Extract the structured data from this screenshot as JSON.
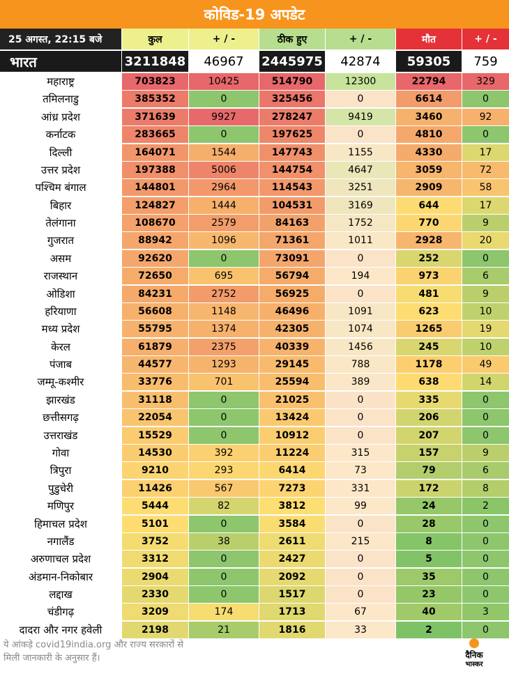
{
  "title": "कोविड-19 अपडेट",
  "header": {
    "date": "25 अगस्त, 22:15 बजे",
    "total": "कुल",
    "total_change": "+ / -",
    "recovered": "ठीक हुए",
    "recovered_change": "+ / -",
    "deaths": "मौत",
    "deaths_change": "+ / -"
  },
  "india": {
    "name": "भारत",
    "total": "3211848",
    "total_change": "46967",
    "recovered": "2445975",
    "recovered_change": "42874",
    "deaths": "59305",
    "deaths_change": "759"
  },
  "colors": {
    "title_bg": "#f7941d",
    "green": "#8dc66d",
    "red": "#e8686a",
    "yellow": "#fbd86c",
    "orange": "#f7ac6e"
  },
  "states": [
    {
      "name": "महाराष्ट्र",
      "total": "703823",
      "total_change": "10425",
      "recovered": "514790",
      "recovered_change": "12300",
      "deaths": "22794",
      "deaths_change": "329"
    },
    {
      "name": "तमिलनाडु",
      "total": "385352",
      "total_change": "0",
      "recovered": "325456",
      "recovered_change": "0",
      "deaths": "6614",
      "deaths_change": "0"
    },
    {
      "name": "आंध्र प्रदेश",
      "total": "371639",
      "total_change": "9927",
      "recovered": "278247",
      "recovered_change": "9419",
      "deaths": "3460",
      "deaths_change": "92"
    },
    {
      "name": "कर्नाटक",
      "total": "283665",
      "total_change": "0",
      "recovered": "197625",
      "recovered_change": "0",
      "deaths": "4810",
      "deaths_change": "0"
    },
    {
      "name": "दिल्ली",
      "total": "164071",
      "total_change": "1544",
      "recovered": "147743",
      "recovered_change": "1155",
      "deaths": "4330",
      "deaths_change": "17"
    },
    {
      "name": "उत्तर प्रदेश",
      "total": "197388",
      "total_change": "5006",
      "recovered": "144754",
      "recovered_change": "4647",
      "deaths": "3059",
      "deaths_change": "72"
    },
    {
      "name": "पश्चिम बंगाल",
      "total": "144801",
      "total_change": "2964",
      "recovered": "114543",
      "recovered_change": "3251",
      "deaths": "2909",
      "deaths_change": "58"
    },
    {
      "name": "बिहार",
      "total": "124827",
      "total_change": "1444",
      "recovered": "104531",
      "recovered_change": "3169",
      "deaths": "644",
      "deaths_change": "17"
    },
    {
      "name": "तेलंगाना",
      "total": "108670",
      "total_change": "2579",
      "recovered": "84163",
      "recovered_change": "1752",
      "deaths": "770",
      "deaths_change": "9"
    },
    {
      "name": "गुजरात",
      "total": "88942",
      "total_change": "1096",
      "recovered": "71361",
      "recovered_change": "1011",
      "deaths": "2928",
      "deaths_change": "20"
    },
    {
      "name": "असम",
      "total": "92620",
      "total_change": "0",
      "recovered": "73091",
      "recovered_change": "0",
      "deaths": "252",
      "deaths_change": "0"
    },
    {
      "name": "राजस्थान",
      "total": "72650",
      "total_change": "695",
      "recovered": "56794",
      "recovered_change": "194",
      "deaths": "973",
      "deaths_change": "6"
    },
    {
      "name": "ओडिशा",
      "total": "84231",
      "total_change": "2752",
      "recovered": "56925",
      "recovered_change": "0",
      "deaths": "481",
      "deaths_change": "9"
    },
    {
      "name": "हरियाणा",
      "total": "56608",
      "total_change": "1148",
      "recovered": "46496",
      "recovered_change": "1091",
      "deaths": "623",
      "deaths_change": "10"
    },
    {
      "name": "मध्य प्रदेश",
      "total": "55795",
      "total_change": "1374",
      "recovered": "42305",
      "recovered_change": "1074",
      "deaths": "1265",
      "deaths_change": "19"
    },
    {
      "name": "केरल",
      "total": "61879",
      "total_change": "2375",
      "recovered": "40339",
      "recovered_change": "1456",
      "deaths": "245",
      "deaths_change": "10"
    },
    {
      "name": "पंजाब",
      "total": "44577",
      "total_change": "1293",
      "recovered": "29145",
      "recovered_change": "788",
      "deaths": "1178",
      "deaths_change": "49"
    },
    {
      "name": "जम्मू-कश्मीर",
      "total": "33776",
      "total_change": "701",
      "recovered": "25594",
      "recovered_change": "389",
      "deaths": "638",
      "deaths_change": "14"
    },
    {
      "name": "झारखंड",
      "total": "31118",
      "total_change": "0",
      "recovered": "21025",
      "recovered_change": "0",
      "deaths": "335",
      "deaths_change": "0"
    },
    {
      "name": "छत्तीसगढ़",
      "total": "22054",
      "total_change": "0",
      "recovered": "13424",
      "recovered_change": "0",
      "deaths": "206",
      "deaths_change": "0"
    },
    {
      "name": "उत्तराखंड",
      "total": "15529",
      "total_change": "0",
      "recovered": "10912",
      "recovered_change": "0",
      "deaths": "207",
      "deaths_change": "0"
    },
    {
      "name": "गोवा",
      "total": "14530",
      "total_change": "392",
      "recovered": "11224",
      "recovered_change": "315",
      "deaths": "157",
      "deaths_change": "9"
    },
    {
      "name": "त्रिपुरा",
      "total": "9210",
      "total_change": "293",
      "recovered": "6414",
      "recovered_change": "73",
      "deaths": "79",
      "deaths_change": "6"
    },
    {
      "name": "पुडुचेरी",
      "total": "11426",
      "total_change": "567",
      "recovered": "7273",
      "recovered_change": "331",
      "deaths": "172",
      "deaths_change": "8"
    },
    {
      "name": "मणिपुर",
      "total": "5444",
      "total_change": "82",
      "recovered": "3812",
      "recovered_change": "99",
      "deaths": "24",
      "deaths_change": "2"
    },
    {
      "name": "हिमाचल प्रदेश",
      "total": "5101",
      "total_change": "0",
      "recovered": "3584",
      "recovered_change": "0",
      "deaths": "28",
      "deaths_change": "0"
    },
    {
      "name": "नगालैंड",
      "total": "3752",
      "total_change": "38",
      "recovered": "2611",
      "recovered_change": "215",
      "deaths": "8",
      "deaths_change": "0"
    },
    {
      "name": "अरुणाचल प्रदेश",
      "total": "3312",
      "total_change": "0",
      "recovered": "2427",
      "recovered_change": "0",
      "deaths": "5",
      "deaths_change": "0"
    },
    {
      "name": "अंडमान-निकोबार",
      "total": "2904",
      "total_change": "0",
      "recovered": "2092",
      "recovered_change": "0",
      "deaths": "35",
      "deaths_change": "0"
    },
    {
      "name": "लद्दाख",
      "total": "2330",
      "total_change": "0",
      "recovered": "1517",
      "recovered_change": "0",
      "deaths": "23",
      "deaths_change": "0"
    },
    {
      "name": "चंडीगढ़",
      "total": "3209",
      "total_change": "174",
      "recovered": "1713",
      "recovered_change": "67",
      "deaths": "40",
      "deaths_change": "3"
    },
    {
      "name": "दादरा और नगर हवेली",
      "total": "2198",
      "total_change": "21",
      "recovered": "1816",
      "recovered_change": "33",
      "deaths": "2",
      "deaths_change": "0"
    }
  ],
  "footnote_line1": "ये आंकड़े covid19india.org और राज्य सरकारों से",
  "footnote_line2": "मिली जानकारी के अनुसार हैं।",
  "logo_line1": "दैनिक",
  "logo_line2": "भास्कर"
}
